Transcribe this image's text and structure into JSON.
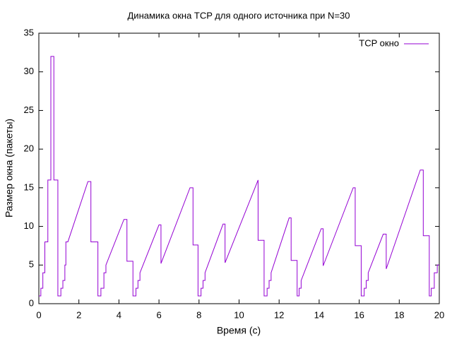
{
  "chart_data": {
    "type": "line",
    "title": "Динамика окна TCP для одного источника при N=30",
    "x_label": "Время (с)",
    "y_label": "Размер окна (пакеты)",
    "legend": "top-right",
    "xlim": [
      0,
      20
    ],
    "xticks": [
      0,
      2,
      4,
      6,
      8,
      10,
      12,
      14,
      16,
      18,
      20
    ],
    "ylim": [
      0,
      35
    ],
    "yticks": [
      0,
      5,
      10,
      15,
      20,
      25,
      30,
      35
    ],
    "series": [
      {
        "name": "TCP окно",
        "color": "#9400d3",
        "x": [
          0,
          0.1,
          0.1,
          0.2,
          0.2,
          0.3,
          0.3,
          0.45,
          0.45,
          0.6,
          0.6,
          0.75,
          0.75,
          0.95,
          0.95,
          1.1,
          1.1,
          1.2,
          1.2,
          1.3,
          1.3,
          1.35,
          1.35,
          1.45,
          2.45,
          2.6,
          2.6,
          2.95,
          2.95,
          3.1,
          3.1,
          3.25,
          3.25,
          3.35,
          3.35,
          4.25,
          4.4,
          4.4,
          4.7,
          4.7,
          4.85,
          4.85,
          4.95,
          4.95,
          5.05,
          5.05,
          6.0,
          6.1,
          6.1,
          7.55,
          7.7,
          7.7,
          7.95,
          7.95,
          8.1,
          8.1,
          8.2,
          8.2,
          8.3,
          8.3,
          9.2,
          9.3,
          9.3,
          10.95,
          10.95,
          11.25,
          11.25,
          11.4,
          11.4,
          11.5,
          11.5,
          11.6,
          11.6,
          12.5,
          12.6,
          12.6,
          12.9,
          12.9,
          13.0,
          13.0,
          13.1,
          13.1,
          14.1,
          14.2,
          14.2,
          15.7,
          15.8,
          15.8,
          16.1,
          16.1,
          16.25,
          16.25,
          16.35,
          16.35,
          16.45,
          16.45,
          17.2,
          17.35,
          17.35,
          19.05,
          19.2,
          19.2,
          19.5,
          19.5,
          19.6,
          19.6,
          19.75,
          19.75,
          19.9,
          19.9,
          20
        ],
        "values": [
          1,
          1,
          2,
          2,
          4,
          4,
          8,
          8,
          16,
          16,
          32,
          32,
          16,
          16,
          1,
          1,
          2,
          2,
          3,
          3,
          5,
          5,
          8,
          8,
          15.8,
          15.8,
          8,
          8,
          1,
          1,
          2,
          2,
          4,
          4,
          5,
          10.9,
          10.9,
          5.5,
          5.5,
          1,
          1,
          2,
          2,
          3,
          3,
          4,
          10.2,
          10.2,
          5.2,
          15,
          15,
          7.6,
          7.6,
          1,
          1,
          2,
          2,
          3,
          3,
          4,
          10.3,
          10.3,
          5.3,
          16,
          8.2,
          8.2,
          1,
          1,
          2,
          2,
          3,
          3,
          4,
          11.1,
          11.1,
          5.6,
          5.6,
          1,
          1,
          2,
          2,
          3,
          9.7,
          9.7,
          4.9,
          15,
          15,
          7.5,
          7.5,
          1,
          1,
          2,
          2,
          3,
          3,
          4,
          9,
          9,
          4.5,
          17.3,
          17.3,
          8.8,
          8.8,
          1,
          1,
          2,
          2,
          4,
          4,
          5,
          5
        ]
      }
    ]
  }
}
